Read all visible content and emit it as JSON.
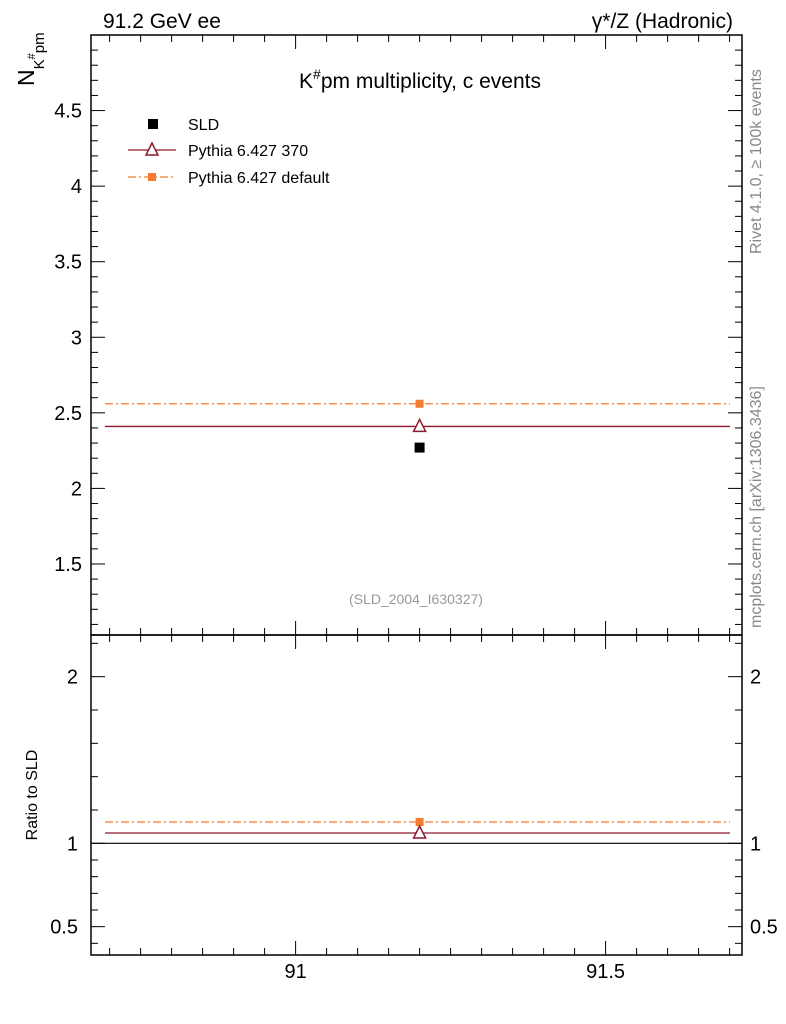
{
  "header": {
    "left": "91.2 GeV ee",
    "right": "γ*/Z (Hadronic)"
  },
  "side_labels": {
    "rivet": "Rivet 4.1.0, ≥ 100k events",
    "mcplots": "mcplots.cern.ch [arXiv:1306.3436]"
  },
  "chart_data": {
    "type": "scatter",
    "title": "K#pm multiplicity, c events",
    "title_parts": {
      "prefix": "K",
      "sup": "#",
      "suffix": "pm multiplicity, c events"
    },
    "ylabel_parts": {
      "main": "N",
      "sub": "K",
      "subsup": "#",
      "subtail": "pm"
    },
    "analysis_id": "(SLD_2004_I630327)",
    "xlim": [
      90.67,
      91.72
    ],
    "x_ticks": [
      "91",
      "91.5"
    ],
    "x_tick_values": [
      91.0,
      91.5
    ],
    "main_panel": {
      "ylim": [
        1.03,
        5.0
      ],
      "y_ticks": [
        "1.5",
        "2",
        "2.5",
        "3",
        "3.5",
        "4",
        "4.5"
      ],
      "y_tick_values": [
        1.5,
        2.0,
        2.5,
        3.0,
        3.5,
        4.0,
        4.5
      ]
    },
    "ratio_panel": {
      "ylabel": "Ratio to SLD",
      "ylim": [
        0.33,
        2.25
      ],
      "y_ticks": [
        "0.5",
        "1",
        "2"
      ],
      "y_tick_values": [
        0.5,
        1.0,
        2.0
      ]
    },
    "legend": [
      {
        "label": "SLD",
        "style": "data"
      },
      {
        "label": "Pythia 6.427 370",
        "style": "triangle"
      },
      {
        "label": "Pythia 6.427 default",
        "style": "dashdot"
      }
    ],
    "series": [
      {
        "name": "SLD",
        "x": 91.2,
        "value": 2.27,
        "color": "#000000"
      },
      {
        "name": "Pythia 6.427 370",
        "x": 91.2,
        "x_range": [
          90.67,
          91.72
        ],
        "value": 2.41,
        "ratio": 1.062,
        "color": "#8b1a2b"
      },
      {
        "name": "Pythia 6.427 default",
        "x": 91.2,
        "x_range": [
          90.67,
          91.72
        ],
        "value": 2.56,
        "ratio": 1.128,
        "color": "#f47c30"
      }
    ]
  }
}
